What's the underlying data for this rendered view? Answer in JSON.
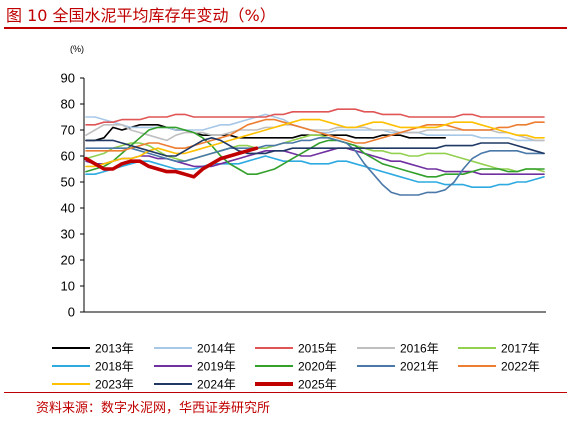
{
  "figure": {
    "title": "图 10 全国水泥平均库存年变动（%）",
    "source": "资料来源：数字水泥网，华西证券研究所"
  },
  "chart_data": {
    "type": "line",
    "unit_label": "(%)",
    "ylim": [
      0,
      90
    ],
    "yticks": [
      0,
      10,
      20,
      30,
      40,
      50,
      60,
      70,
      80,
      90
    ],
    "x_points": 52,
    "grid": false,
    "legend_position": "bottom",
    "series": [
      {
        "name": "2013年",
        "color": "#000000",
        "width": 1.6,
        "values": [
          66,
          66,
          67,
          71,
          70,
          71,
          72,
          72,
          72,
          71,
          70,
          70,
          69,
          68,
          68,
          68,
          68,
          67,
          67,
          67,
          67,
          67,
          67,
          67,
          68,
          68,
          68,
          68,
          68,
          68,
          67,
          67,
          67,
          68,
          68,
          68,
          67,
          67,
          67,
          67,
          67
        ]
      },
      {
        "name": "2014年",
        "color": "#a8c8e8",
        "width": 1.6,
        "values": [
          75,
          75,
          74,
          73,
          72,
          71,
          71,
          71,
          71,
          71,
          70,
          70,
          70,
          70,
          71,
          72,
          72,
          73,
          74,
          75,
          76,
          75,
          74,
          72,
          71,
          70,
          69,
          69,
          70,
          70,
          70,
          70,
          70,
          70,
          69,
          69,
          69,
          69,
          68,
          68,
          68,
          68,
          68,
          68,
          67,
          67,
          67,
          67,
          66,
          66,
          66,
          66
        ]
      },
      {
        "name": "2015年",
        "color": "#e05555",
        "width": 1.6,
        "values": [
          72,
          72,
          73,
          73,
          74,
          74,
          74,
          75,
          75,
          75,
          76,
          76,
          75,
          75,
          75,
          75,
          75,
          75,
          75,
          75,
          75,
          76,
          76,
          77,
          77,
          77,
          77,
          77,
          78,
          78,
          78,
          77,
          77,
          76,
          76,
          76,
          75,
          75,
          75,
          75,
          75,
          75,
          76,
          76,
          75,
          75,
          75,
          75,
          75,
          75,
          75,
          75
        ]
      },
      {
        "name": "2016年",
        "color": "#bfbfbf",
        "width": 1.6,
        "values": [
          68,
          70,
          72,
          72,
          72,
          70,
          69,
          68,
          67,
          66,
          68,
          69,
          69,
          69,
          68,
          68,
          69,
          70,
          70,
          70,
          71,
          71,
          72,
          72,
          71,
          70,
          70,
          70,
          71,
          71,
          71,
          71,
          70,
          70,
          70,
          69,
          69,
          69,
          70,
          70,
          70,
          70,
          70,
          70,
          70,
          70,
          69,
          69,
          68,
          67,
          66,
          66
        ]
      },
      {
        "name": "2017年",
        "color": "#92d050",
        "width": 1.6,
        "values": [
          59,
          60,
          61,
          63,
          64,
          65,
          65,
          64,
          62,
          60,
          59,
          58,
          59,
          60,
          61,
          62,
          63,
          64,
          64,
          63,
          63,
          64,
          65,
          66,
          67,
          68,
          68,
          67,
          66,
          65,
          64,
          63,
          62,
          62,
          61,
          61,
          60,
          60,
          61,
          61,
          61,
          60,
          59,
          58,
          57,
          56,
          55,
          55,
          54,
          55,
          55,
          54
        ]
      },
      {
        "name": "2018年",
        "color": "#2eaae0",
        "width": 1.6,
        "values": [
          53,
          53,
          54,
          55,
          56,
          57,
          58,
          58,
          57,
          56,
          55,
          55,
          55,
          56,
          57,
          57,
          57,
          57,
          58,
          59,
          60,
          59,
          58,
          58,
          58,
          57,
          57,
          57,
          58,
          58,
          57,
          56,
          55,
          54,
          53,
          52,
          51,
          50,
          50,
          50,
          49,
          49,
          49,
          48,
          48,
          48,
          49,
          49,
          50,
          50,
          51,
          52
        ]
      },
      {
        "name": "2019年",
        "color": "#7030a0",
        "width": 1.6,
        "values": [
          58,
          57,
          57,
          58,
          59,
          59,
          60,
          60,
          59,
          59,
          58,
          57,
          56,
          56,
          56,
          57,
          58,
          59,
          60,
          61,
          62,
          62,
          62,
          61,
          60,
          60,
          61,
          62,
          63,
          63,
          62,
          61,
          60,
          59,
          58,
          58,
          57,
          56,
          55,
          55,
          54,
          54,
          54,
          54,
          53,
          53,
          53,
          53,
          53,
          53,
          53,
          53
        ]
      },
      {
        "name": "2020年",
        "color": "#33a02c",
        "width": 1.6,
        "values": [
          54,
          55,
          56,
          58,
          61,
          64,
          67,
          70,
          71,
          71,
          71,
          70,
          69,
          67,
          64,
          60,
          57,
          55,
          53,
          53,
          54,
          55,
          57,
          59,
          61,
          63,
          65,
          66,
          66,
          65,
          64,
          61,
          59,
          57,
          56,
          55,
          54,
          53,
          52,
          52,
          53,
          53,
          53,
          54,
          55,
          55,
          55,
          54,
          54,
          55,
          55,
          55
        ]
      },
      {
        "name": "2021年",
        "color": "#4a78a8",
        "width": 1.6,
        "values": [
          63,
          63,
          63,
          63,
          63,
          63,
          62,
          61,
          60,
          59,
          58,
          58,
          59,
          60,
          61,
          62,
          63,
          63,
          63,
          63,
          64,
          64,
          65,
          65,
          66,
          66,
          67,
          67,
          66,
          65,
          62,
          57,
          53,
          49,
          46,
          45,
          45,
          45,
          46,
          46,
          47,
          50,
          55,
          59,
          61,
          62,
          62,
          62,
          62,
          61,
          61,
          61
        ]
      },
      {
        "name": "2022年",
        "color": "#ed7d31",
        "width": 1.6,
        "values": [
          62,
          62,
          62,
          62,
          62,
          63,
          64,
          65,
          65,
          64,
          63,
          63,
          64,
          65,
          66,
          67,
          68,
          70,
          72,
          73,
          74,
          74,
          73,
          72,
          71,
          70,
          69,
          68,
          67,
          66,
          65,
          65,
          66,
          67,
          68,
          69,
          70,
          71,
          72,
          72,
          72,
          71,
          70,
          70,
          70,
          70,
          71,
          71,
          72,
          72,
          73,
          73
        ]
      },
      {
        "name": "2023年",
        "color": "#ffc000",
        "width": 1.6,
        "values": [
          56,
          56,
          57,
          58,
          59,
          59,
          60,
          62,
          63,
          62,
          61,
          61,
          62,
          63,
          64,
          65,
          66,
          67,
          68,
          69,
          70,
          71,
          72,
          73,
          74,
          74,
          74,
          73,
          72,
          71,
          71,
          72,
          73,
          73,
          72,
          71,
          71,
          71,
          71,
          71,
          72,
          73,
          73,
          73,
          72,
          71,
          70,
          69,
          68,
          68,
          67,
          67
        ]
      },
      {
        "name": "2024年",
        "color": "#1f3864",
        "width": 1.6,
        "values": [
          66,
          66,
          66,
          66,
          65,
          64,
          63,
          62,
          61,
          60,
          60,
          62,
          64,
          66,
          67,
          66,
          64,
          62,
          61,
          61,
          61,
          62,
          62,
          63,
          63,
          63,
          63,
          63,
          63,
          63,
          63,
          63,
          63,
          63,
          63,
          63,
          63,
          63,
          63,
          63,
          64,
          64,
          64,
          64,
          65,
          65,
          65,
          65,
          64,
          63,
          62,
          61
        ]
      },
      {
        "name": "2025年",
        "color": "#c00000",
        "width": 3.6,
        "values": [
          59,
          57,
          55,
          55,
          57,
          58,
          58,
          56,
          55,
          54,
          54,
          53,
          52,
          55,
          57,
          59,
          60,
          61,
          62,
          63
        ]
      }
    ]
  }
}
